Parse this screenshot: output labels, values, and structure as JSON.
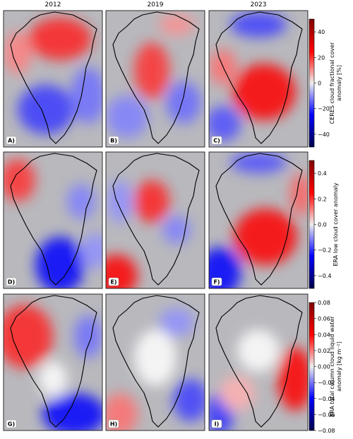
{
  "columns": [
    "2012",
    "2019",
    "2023"
  ],
  "panels": [
    "A)",
    "B)",
    "C)",
    "D)",
    "E)",
    "F)",
    "G)",
    "H)",
    "I)"
  ],
  "colorbars": [
    {
      "label": [
        "CERES cloud fractional cover",
        "anomaly [%]"
      ],
      "lim": [
        -50,
        50
      ],
      "ticks": [
        {
          "value": -40,
          "label": "−40"
        },
        {
          "value": -20,
          "label": "−20"
        },
        0,
        20,
        40
      ]
    },
    {
      "label": [
        "ERA low cloud cover anomaly"
      ],
      "lim": [
        -0.5,
        0.5
      ],
      "ticks": [
        {
          "value": -0.4,
          "label": "−0.4"
        },
        {
          "value": -0.2,
          "label": "−0.2"
        },
        {
          "value": 0,
          "label": "0.0"
        },
        0.2,
        0.4
      ]
    },
    {
      "label": [
        "ERA total column cloud liquid water",
        "anomaly [kg m⁻²]"
      ],
      "lim": [
        -0.08,
        0.08
      ],
      "ticks": [
        {
          "value": -0.08,
          "label": "−0.08"
        },
        {
          "value": -0.06,
          "label": "−0.06"
        },
        {
          "value": -0.04,
          "label": "−0.04"
        },
        {
          "value": -0.02,
          "label": "−0.02"
        },
        {
          "value": 0,
          "label": "0.00"
        },
        0.02,
        0.04,
        0.06,
        0.08
      ]
    }
  ]
}
